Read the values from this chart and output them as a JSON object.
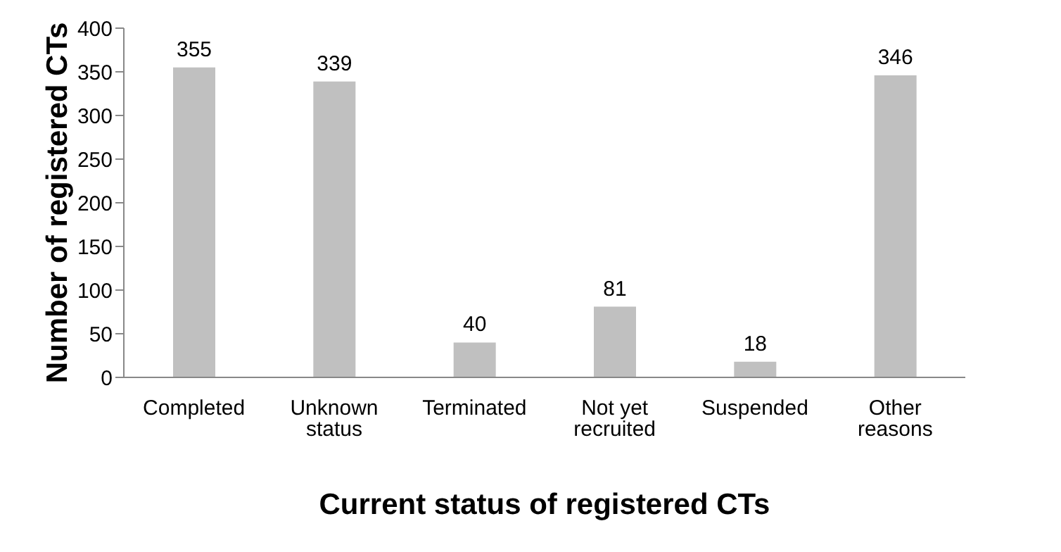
{
  "chart_data": {
    "type": "bar",
    "xlabel": "Current status of registered CTs",
    "ylabel": "Number of registered CTs",
    "categories": [
      "Completed",
      "Unknown status",
      "Terminated",
      "Not yet recruited",
      "Suspended",
      "Other reasons"
    ],
    "values": [
      355,
      339,
      40,
      81,
      18,
      346
    ],
    "color": "#c0c0c0",
    "ylim": [
      0,
      400
    ],
    "yticks": [
      0,
      50,
      100,
      150,
      200,
      250,
      300,
      350,
      400
    ],
    "data_labels": true,
    "grid": false,
    "legend": false
  }
}
